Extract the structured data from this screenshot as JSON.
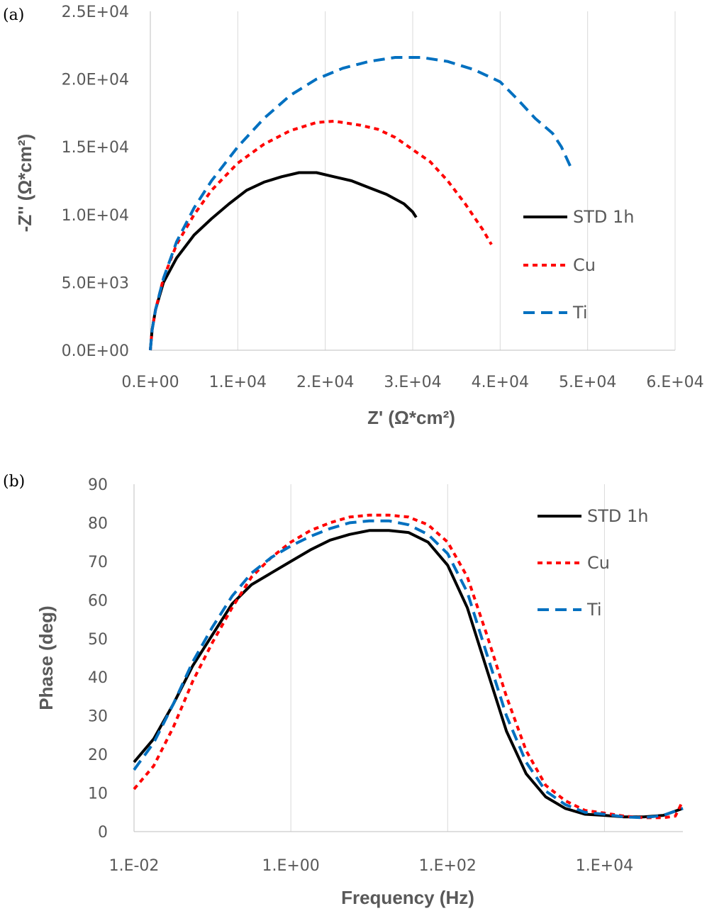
{
  "chart_data": [
    {
      "type": "line",
      "panel_label": "(a)",
      "xlabel": "Z' (Ω*cm²)",
      "ylabel": "-Z'' (Ω*cm²)",
      "xlim": [
        0,
        60000
      ],
      "ylim": [
        0,
        25000
      ],
      "xticks": [
        0,
        10000,
        20000,
        30000,
        40000,
        50000,
        60000
      ],
      "xtick_labels": [
        "0.E+00",
        "1.E+04",
        "2.E+04",
        "3.E+04",
        "4.E+04",
        "5.E+04",
        "6.E+04"
      ],
      "yticks": [
        0,
        5000,
        10000,
        15000,
        20000,
        25000
      ],
      "ytick_labels": [
        "0.0E+00",
        "5.0E+03",
        "1.0E+04",
        "1.5E+04",
        "2.0E+04",
        "2.5E+04"
      ],
      "grid": "vertical",
      "legend_position": "right",
      "series": [
        {
          "name": "STD 1h",
          "color": "#000000",
          "dash": "solid",
          "x": [
            0,
            200,
            600,
            1500,
            3000,
            5000,
            7000,
            9000,
            11000,
            13000,
            15000,
            17000,
            19000,
            21000,
            23000,
            25000,
            27000,
            29000,
            30000,
            30400
          ],
          "y": [
            0,
            1500,
            3000,
            5000,
            6800,
            8500,
            9700,
            10800,
            11800,
            12400,
            12800,
            13100,
            13100,
            12800,
            12500,
            12000,
            11500,
            10800,
            10200,
            9800
          ]
        },
        {
          "name": "Cu",
          "color": "#ff0000",
          "dash": "short",
          "x": [
            0,
            200,
            600,
            1500,
            3000,
            5000,
            7000,
            10000,
            13000,
            16000,
            19000,
            21000,
            24000,
            26000,
            28000,
            30000,
            32000,
            34000,
            36000,
            38000,
            39000
          ],
          "y": [
            0,
            1500,
            3000,
            5300,
            7800,
            10000,
            11800,
            13800,
            15200,
            16200,
            16800,
            16900,
            16600,
            16300,
            15700,
            14800,
            13900,
            12500,
            10800,
            8900,
            7800
          ]
        },
        {
          "name": "Ti",
          "color": "#0070c0",
          "dash": "long",
          "x": [
            0,
            200,
            600,
            1500,
            3000,
            5000,
            7000,
            10000,
            13000,
            16000,
            19000,
            22000,
            25000,
            28000,
            31000,
            34000,
            37000,
            40000,
            42000,
            44000,
            46000,
            47000,
            48000
          ],
          "y": [
            0,
            1500,
            3000,
            5300,
            8000,
            10500,
            12500,
            15000,
            17100,
            18800,
            20000,
            20800,
            21300,
            21600,
            21600,
            21300,
            20700,
            19800,
            18500,
            17100,
            16000,
            15000,
            13600
          ]
        }
      ]
    },
    {
      "type": "line",
      "panel_label": "(b)",
      "xlabel": "Frequency (Hz)",
      "ylabel": "Phase (deg)",
      "xscale": "log",
      "xlim": [
        0.01,
        100000
      ],
      "ylim": [
        0,
        90
      ],
      "xticks": [
        0.01,
        1,
        100,
        10000
      ],
      "xtick_labels": [
        "1.E-02",
        "1.E+00",
        "1.E+02",
        "1.E+04"
      ],
      "yticks": [
        0,
        10,
        20,
        30,
        40,
        50,
        60,
        70,
        80,
        90
      ],
      "ytick_labels": [
        "0",
        "10",
        "20",
        "30",
        "40",
        "50",
        "60",
        "70",
        "80",
        "90"
      ],
      "grid": "vertical",
      "legend_position": "top-right",
      "series": [
        {
          "name": "STD 1h",
          "color": "#000000",
          "dash": "solid",
          "x": [
            0.01,
            0.0178,
            0.0316,
            0.0562,
            0.1,
            0.178,
            0.316,
            0.562,
            1,
            1.78,
            3.16,
            5.62,
            10,
            17.8,
            31.6,
            56.2,
            100,
            178,
            316,
            562,
            1000,
            1780,
            3160,
            5620,
            10000,
            17800,
            31600,
            56200,
            100000
          ],
          "y": [
            18,
            24,
            33,
            43,
            51,
            59,
            64,
            67,
            70,
            73,
            75.5,
            77,
            78,
            78,
            77.5,
            75,
            69,
            58,
            42,
            26,
            15,
            9,
            6,
            4.5,
            4.2,
            3.8,
            3.8,
            4.2,
            6
          ]
        },
        {
          "name": "Cu",
          "color": "#ff0000",
          "dash": "short",
          "x": [
            0.01,
            0.0178,
            0.0316,
            0.0562,
            0.1,
            0.178,
            0.316,
            0.562,
            1,
            1.78,
            3.16,
            5.62,
            10,
            17.8,
            31.6,
            56.2,
            100,
            178,
            316,
            562,
            1000,
            1780,
            3160,
            5620,
            10000,
            17800,
            31600,
            56200,
            80000,
            100000
          ],
          "y": [
            11,
            17,
            27,
            39,
            49,
            58,
            66,
            71,
            75,
            78,
            80,
            81.5,
            82,
            82,
            81.5,
            79.5,
            75,
            66,
            51,
            35,
            21,
            12,
            8,
            5.5,
            4.8,
            4,
            3.6,
            3.6,
            4,
            8
          ]
        },
        {
          "name": "Ti",
          "color": "#0070c0",
          "dash": "long",
          "x": [
            0.01,
            0.0178,
            0.0316,
            0.0562,
            0.1,
            0.178,
            0.316,
            0.562,
            1,
            1.78,
            3.16,
            5.62,
            10,
            17.8,
            31.6,
            56.2,
            100,
            178,
            316,
            562,
            1000,
            1780,
            3160,
            5620,
            10000,
            17800,
            31600,
            56200,
            100000
          ],
          "y": [
            16,
            23,
            33,
            44,
            53,
            61,
            67,
            71,
            74,
            76.5,
            78.5,
            80,
            80.5,
            80.5,
            79.5,
            77,
            72,
            62,
            46,
            30,
            18,
            10.5,
            7,
            5,
            4.5,
            3.8,
            3.6,
            4.2,
            6
          ]
        }
      ]
    }
  ]
}
